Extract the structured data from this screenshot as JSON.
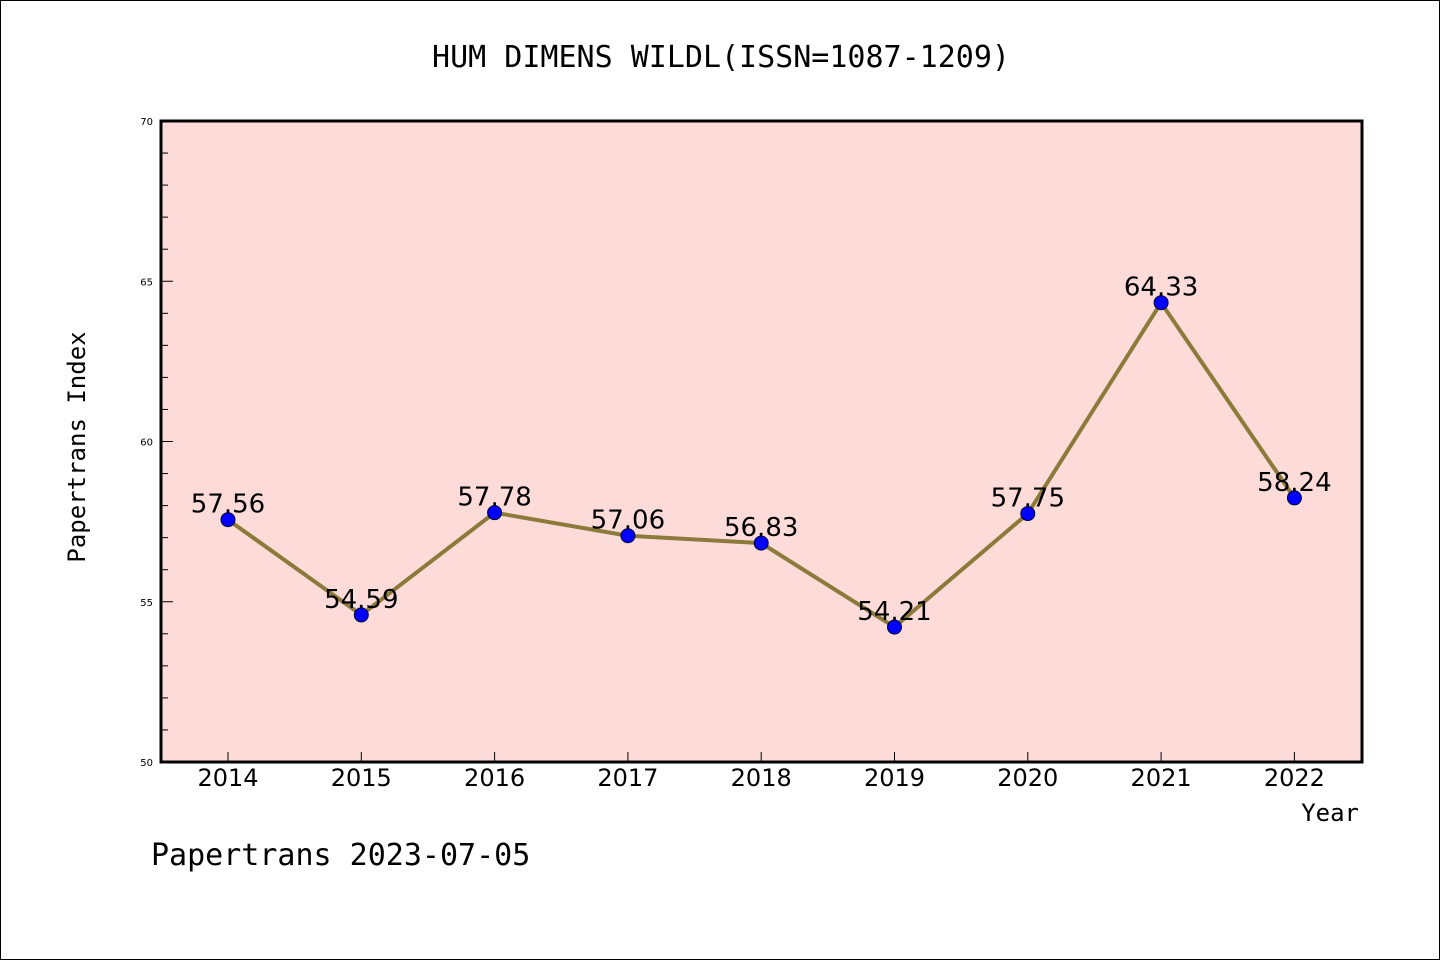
{
  "chart_data": {
    "type": "line",
    "title": "HUM DIMENS WILDL(ISSN=1087-1209)",
    "xlabel": "Year",
    "ylabel": "Papertrans Index",
    "categories": [
      "2014",
      "2015",
      "2016",
      "2017",
      "2018",
      "2019",
      "2020",
      "2021",
      "2022"
    ],
    "values": [
      57.56,
      54.59,
      57.78,
      57.06,
      56.83,
      54.21,
      57.75,
      64.33,
      58.24
    ],
    "value_labels": [
      "57.56",
      "54.59",
      "57.78",
      "57.06",
      "56.83",
      "54.21",
      "57.75",
      "64.33",
      "58.24"
    ],
    "ylim": [
      50,
      70
    ],
    "yticks": [
      "50",
      "55",
      "60",
      "65",
      "70"
    ],
    "grid": false,
    "colors": {
      "plot_background": "#fddbd8",
      "line": "#8c7a3a",
      "marker": "#0000ff"
    }
  },
  "footer": {
    "text": "Papertrans 2023-07-05"
  }
}
